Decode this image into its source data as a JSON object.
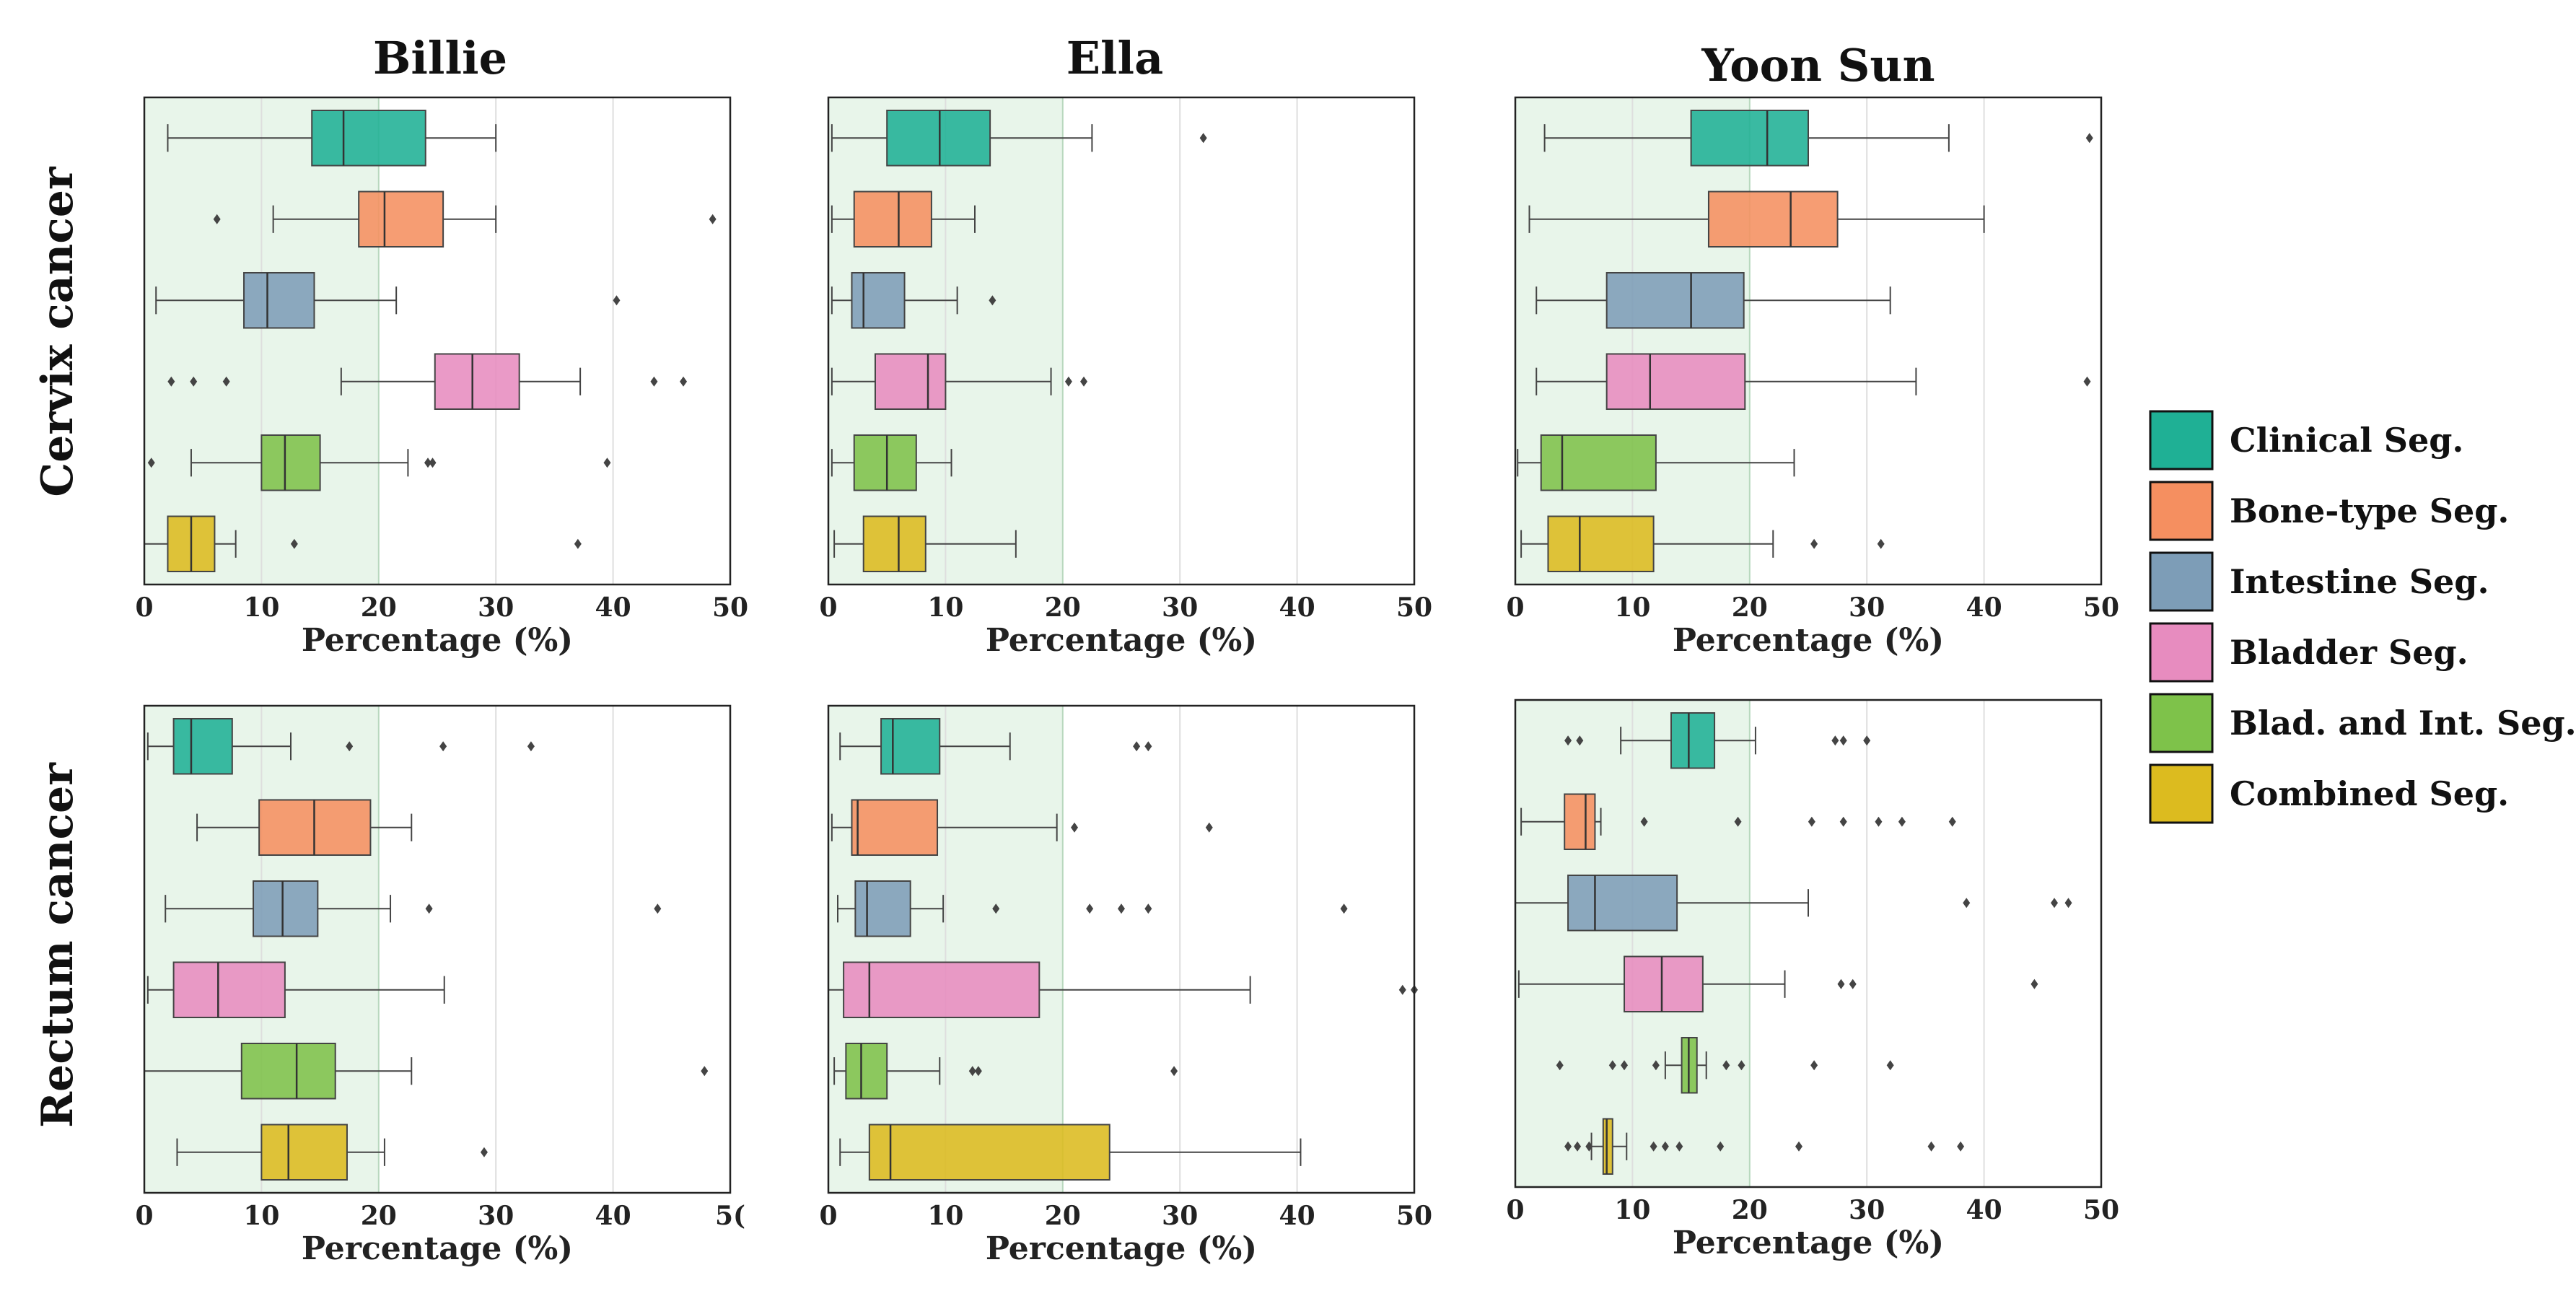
{
  "figure": {
    "column_titles": [
      "Billie",
      "Ella",
      "Yoon Sun"
    ],
    "row_titles": [
      "Cervix cancer",
      "Rectum cancer"
    ],
    "legend": [
      {
        "label": "Clinical Seg.",
        "color": "#1fb095"
      },
      {
        "label": "Bone-type Seg.",
        "color": "#f58f60"
      },
      {
        "label": "Intestine Seg.",
        "color": "#7d9db7"
      },
      {
        "label": "Bladder Seg.",
        "color": "#e78cbf"
      },
      {
        "label": "Blad. and Int. Seg.",
        "color": "#7ec24a"
      },
      {
        "label": "Combined Seg.",
        "color": "#dcbb1f"
      }
    ]
  },
  "chart_data": [
    {
      "type": "boxplot",
      "panel": "Cervix cancer / Billie",
      "orientation": "horizontal",
      "xlabel": "Percentage (%)",
      "xlim": [
        0,
        50
      ],
      "xticks": [
        "0",
        "10",
        "20",
        "30",
        "40",
        "50"
      ],
      "shaded_region": [
        0,
        20
      ],
      "grid": "vertical",
      "series": [
        {
          "name": "Clinical Seg.",
          "whisker_low": 2,
          "q1": 14.3,
          "median": 17,
          "q3": 24,
          "whisker_high": 30,
          "outliers": []
        },
        {
          "name": "Bone-type Seg.",
          "whisker_low": 11,
          "q1": 18.3,
          "median": 20.5,
          "q3": 25.5,
          "whisker_high": 30,
          "outliers": [
            6.2,
            48.5
          ]
        },
        {
          "name": "Intestine Seg.",
          "whisker_low": 1,
          "q1": 8.5,
          "median": 10.5,
          "q3": 14.5,
          "whisker_high": 21.5,
          "outliers": [
            40.3
          ]
        },
        {
          "name": "Bladder Seg.",
          "whisker_low": 16.8,
          "q1": 24.8,
          "median": 28,
          "q3": 32,
          "whisker_high": 37.2,
          "outliers": [
            2.3,
            4.2,
            7,
            43.5,
            46
          ]
        },
        {
          "name": "Blad. and Int. Seg.",
          "whisker_low": 4,
          "q1": 10,
          "median": 12,
          "q3": 15,
          "whisker_high": 22.5,
          "outliers": [
            0.6,
            24.2,
            24.6,
            39.5
          ]
        },
        {
          "name": "Combined Seg.",
          "whisker_low": 0,
          "q1": 2,
          "median": 4,
          "q3": 6,
          "whisker_high": 7.8,
          "outliers": [
            12.8,
            37
          ]
        }
      ]
    },
    {
      "type": "boxplot",
      "panel": "Cervix cancer / Ella",
      "orientation": "horizontal",
      "xlabel": "Percentage (%)",
      "xlim": [
        0,
        50
      ],
      "xticks": [
        "0",
        "10",
        "20",
        "30",
        "40",
        "50"
      ],
      "shaded_region": [
        0,
        20
      ],
      "grid": "vertical",
      "series": [
        {
          "name": "Clinical Seg.",
          "whisker_low": 0.3,
          "q1": 5,
          "median": 9.5,
          "q3": 13.8,
          "whisker_high": 22.5,
          "outliers": [
            32
          ]
        },
        {
          "name": "Bone-type Seg.",
          "whisker_low": 0.3,
          "q1": 2.2,
          "median": 6,
          "q3": 8.8,
          "whisker_high": 12.5,
          "outliers": []
        },
        {
          "name": "Intestine Seg.",
          "whisker_low": 0.3,
          "q1": 2,
          "median": 3,
          "q3": 6.5,
          "whisker_high": 11,
          "outliers": [
            14
          ]
        },
        {
          "name": "Bladder Seg.",
          "whisker_low": 0.3,
          "q1": 4,
          "median": 8.5,
          "q3": 10,
          "whisker_high": 19,
          "outliers": [
            20.5,
            21.8
          ]
        },
        {
          "name": "Blad. and Int. Seg.",
          "whisker_low": 0.3,
          "q1": 2.2,
          "median": 5,
          "q3": 7.5,
          "whisker_high": 10.5,
          "outliers": []
        },
        {
          "name": "Combined Seg.",
          "whisker_low": 0.5,
          "q1": 3,
          "median": 6,
          "q3": 8.3,
          "whisker_high": 16,
          "outliers": []
        }
      ]
    },
    {
      "type": "boxplot",
      "panel": "Cervix cancer / Yoon Sun",
      "orientation": "horizontal",
      "xlabel": "Percentage (%)",
      "xlim": [
        0,
        50
      ],
      "xticks": [
        "0",
        "10",
        "20",
        "30",
        "40",
        "50"
      ],
      "shaded_region": [
        0,
        20
      ],
      "grid": "vertical",
      "series": [
        {
          "name": "Clinical Seg.",
          "whisker_low": 2.5,
          "q1": 15,
          "median": 21.5,
          "q3": 25,
          "whisker_high": 37,
          "outliers": [
            49
          ]
        },
        {
          "name": "Bone-type Seg.",
          "whisker_low": 1.2,
          "q1": 16.5,
          "median": 23.5,
          "q3": 27.5,
          "whisker_high": 40,
          "outliers": []
        },
        {
          "name": "Intestine Seg.",
          "whisker_low": 1.8,
          "q1": 7.8,
          "median": 15,
          "q3": 19.5,
          "whisker_high": 32,
          "outliers": []
        },
        {
          "name": "Bladder Seg.",
          "whisker_low": 1.8,
          "q1": 7.8,
          "median": 11.5,
          "q3": 19.6,
          "whisker_high": 34.2,
          "outliers": [
            48.8
          ]
        },
        {
          "name": "Blad. and Int. Seg.",
          "whisker_low": 0.2,
          "q1": 2.2,
          "median": 4,
          "q3": 12,
          "whisker_high": 23.8,
          "outliers": []
        },
        {
          "name": "Combined Seg.",
          "whisker_low": 0.5,
          "q1": 2.8,
          "median": 5.5,
          "q3": 11.8,
          "whisker_high": 22,
          "outliers": [
            25.5,
            31.2
          ]
        }
      ]
    },
    {
      "type": "boxplot",
      "panel": "Rectum cancer / Billie",
      "orientation": "horizontal",
      "xlabel": "Percentage (%)",
      "xlim": [
        0,
        50
      ],
      "xticks": [
        "0",
        "10",
        "20",
        "30",
        "40",
        "5("
      ],
      "shaded_region": [
        0,
        20
      ],
      "grid": "vertical",
      "series": [
        {
          "name": "Clinical Seg.",
          "whisker_low": 0.3,
          "q1": 2.5,
          "median": 4,
          "q3": 7.5,
          "whisker_high": 12.5,
          "outliers": [
            17.5,
            25.5,
            33
          ]
        },
        {
          "name": "Bone-type Seg.",
          "whisker_low": 4.5,
          "q1": 9.8,
          "median": 14.5,
          "q3": 19.3,
          "whisker_high": 22.8,
          "outliers": []
        },
        {
          "name": "Intestine Seg.",
          "whisker_low": 1.8,
          "q1": 9.3,
          "median": 11.8,
          "q3": 14.8,
          "whisker_high": 21,
          "outliers": [
            24.3,
            43.8
          ]
        },
        {
          "name": "Bladder Seg.",
          "whisker_low": 0.3,
          "q1": 2.5,
          "median": 6.3,
          "q3": 12,
          "whisker_high": 25.6,
          "outliers": []
        },
        {
          "name": "Blad. and Int. Seg.",
          "whisker_low": 0,
          "q1": 8.3,
          "median": 13,
          "q3": 16.3,
          "whisker_high": 22.8,
          "outliers": [
            47.8
          ]
        },
        {
          "name": "Combined Seg.",
          "whisker_low": 2.8,
          "q1": 10,
          "median": 12.3,
          "q3": 17.3,
          "whisker_high": 20.5,
          "outliers": [
            29
          ]
        }
      ]
    },
    {
      "type": "boxplot",
      "panel": "Rectum cancer / Ella",
      "orientation": "horizontal",
      "xlabel": "Percentage (%)",
      "xlim": [
        0,
        50
      ],
      "xticks": [
        "0",
        "10",
        "20",
        "30",
        "40",
        "50"
      ],
      "shaded_region": [
        0,
        20
      ],
      "grid": "vertical",
      "series": [
        {
          "name": "Clinical Seg.",
          "whisker_low": 1,
          "q1": 4.5,
          "median": 5.5,
          "q3": 9.5,
          "whisker_high": 15.5,
          "outliers": [
            26.3,
            27.3
          ]
        },
        {
          "name": "Bone-type Seg.",
          "whisker_low": 0.3,
          "q1": 2,
          "median": 2.5,
          "q3": 9.3,
          "whisker_high": 19.5,
          "outliers": [
            21,
            32.5
          ]
        },
        {
          "name": "Intestine Seg.",
          "whisker_low": 0.8,
          "q1": 2.3,
          "median": 3.3,
          "q3": 7,
          "whisker_high": 9.8,
          "outliers": [
            14.3,
            22.3,
            25,
            27.3,
            44
          ]
        },
        {
          "name": "Bladder Seg.",
          "whisker_low": 0,
          "q1": 1.3,
          "median": 3.5,
          "q3": 18,
          "whisker_high": 36,
          "outliers": [
            49,
            50
          ]
        },
        {
          "name": "Blad. and Int. Seg.",
          "whisker_low": 0.5,
          "q1": 1.5,
          "median": 2.8,
          "q3": 5,
          "whisker_high": 9.5,
          "outliers": [
            12.3,
            12.8,
            29.5
          ]
        },
        {
          "name": "Combined Seg.",
          "whisker_low": 1,
          "q1": 3.5,
          "median": 5.3,
          "q3": 24,
          "whisker_high": 40.3,
          "outliers": []
        }
      ]
    },
    {
      "type": "boxplot",
      "panel": "Rectum cancer / Yoon Sun",
      "orientation": "horizontal",
      "xlabel": "Percentage (%)",
      "xlim": [
        0,
        50
      ],
      "xticks": [
        "0",
        "10",
        "20",
        "30",
        "40",
        "50"
      ],
      "shaded_region": [
        0,
        20
      ],
      "grid": "vertical",
      "series": [
        {
          "name": "Clinical Seg.",
          "whisker_low": 9,
          "q1": 13.3,
          "median": 14.8,
          "q3": 17,
          "whisker_high": 20.5,
          "outliers": [
            4.5,
            5.5,
            27.3,
            28,
            30
          ]
        },
        {
          "name": "Bone-type Seg.",
          "whisker_low": 0.5,
          "q1": 4.2,
          "median": 6,
          "q3": 6.8,
          "whisker_high": 7.3,
          "outliers": [
            11,
            19,
            25.3,
            28,
            31,
            33,
            37.3
          ]
        },
        {
          "name": "Intestine Seg.",
          "whisker_low": 0,
          "q1": 4.5,
          "median": 6.8,
          "q3": 13.8,
          "whisker_high": 25,
          "outliers": [
            38.5,
            46,
            47.2
          ]
        },
        {
          "name": "Bladder Seg.",
          "whisker_low": 0.3,
          "q1": 9.3,
          "median": 12.5,
          "q3": 16,
          "whisker_high": 23,
          "outliers": [
            27.8,
            28.8,
            44.3
          ]
        },
        {
          "name": "Blad. and Int. Seg.",
          "whisker_low": 12.8,
          "q1": 14.2,
          "median": 14.8,
          "q3": 15.5,
          "whisker_high": 16.3,
          "outliers": [
            3.8,
            8.3,
            9.3,
            12,
            18,
            19.3,
            25.5,
            32
          ]
        },
        {
          "name": "Combined Seg.",
          "whisker_low": 6.5,
          "q1": 7.5,
          "median": 7.8,
          "q3": 8.3,
          "whisker_high": 9.5,
          "outliers": [
            4.5,
            5.3,
            6.3,
            11.8,
            12.8,
            14,
            17.5,
            24.2,
            35.5,
            38
          ]
        }
      ]
    }
  ]
}
